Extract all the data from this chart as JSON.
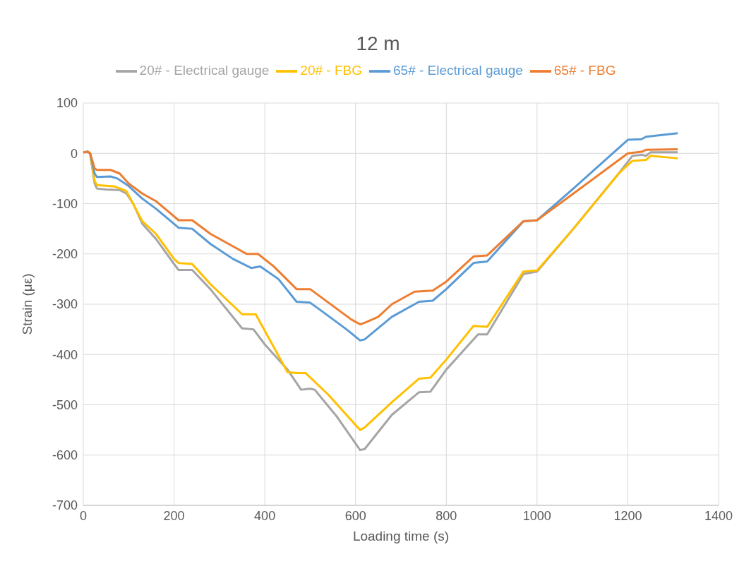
{
  "chart_data": {
    "type": "line",
    "title": "12 m",
    "xlabel": "Loading time (s)",
    "ylabel": "Strain (με)",
    "xlim": [
      0,
      1400
    ],
    "xticks": [
      0,
      200,
      400,
      600,
      800,
      1000,
      1200,
      1400
    ],
    "ylim": [
      -700,
      100
    ],
    "yticks": [
      -700,
      -600,
      -500,
      -400,
      -300,
      -200,
      -100,
      0,
      100
    ],
    "grid": true,
    "legend": "top",
    "marker": "none",
    "line_style": "solid",
    "series": [
      {
        "name": "20# - Electrical gauge",
        "color": "#a5a5a5",
        "x": [
          0,
          10,
          15,
          25,
          30,
          50,
          80,
          95,
          110,
          130,
          160,
          200,
          210,
          240,
          280,
          350,
          375,
          400,
          450,
          480,
          500,
          510,
          560,
          610,
          620,
          680,
          740,
          765,
          800,
          870,
          890,
          970,
          1000,
          1080,
          1180,
          1210,
          1230,
          1240,
          1250,
          1310
        ],
        "values": [
          2,
          3,
          0,
          -60,
          -70,
          -72,
          -73,
          -80,
          -100,
          -140,
          -170,
          -220,
          -232,
          -232,
          -270,
          -348,
          -350,
          -380,
          -430,
          -470,
          -468,
          -470,
          -525,
          -590,
          -588,
          -520,
          -475,
          -474,
          -430,
          -360,
          -360,
          -240,
          -235,
          -150,
          -40,
          -5,
          -3,
          -5,
          2,
          2
        ]
      },
      {
        "name": "20# - FBG",
        "color": "#ffc000",
        "x": [
          0,
          10,
          15,
          25,
          30,
          70,
          95,
          130,
          160,
          200,
          210,
          240,
          250,
          280,
          350,
          380,
          450,
          470,
          490,
          540,
          610,
          620,
          680,
          740,
          765,
          800,
          860,
          890,
          970,
          1000,
          1080,
          1180,
          1210,
          1240,
          1250,
          1310
        ],
        "values": [
          2,
          3,
          0,
          -55,
          -63,
          -66,
          -75,
          -135,
          -160,
          -210,
          -218,
          -220,
          -230,
          -260,
          -320,
          -320,
          -435,
          -437,
          -437,
          -480,
          -550,
          -545,
          -495,
          -448,
          -446,
          -410,
          -343,
          -345,
          -235,
          -233,
          -150,
          -40,
          -15,
          -13,
          -5,
          -10
        ]
      },
      {
        "name": "65# - Electrical gauge",
        "color": "#5b9bd5",
        "x": [
          0,
          10,
          15,
          25,
          30,
          60,
          75,
          100,
          130,
          160,
          210,
          240,
          280,
          330,
          370,
          390,
          430,
          470,
          500,
          520,
          580,
          610,
          620,
          680,
          740,
          770,
          800,
          860,
          890,
          970,
          1000,
          1080,
          1200,
          1230,
          1240,
          1310
        ],
        "values": [
          2,
          3,
          0,
          -40,
          -47,
          -46,
          -50,
          -65,
          -90,
          -110,
          -148,
          -150,
          -180,
          -210,
          -228,
          -225,
          -250,
          -295,
          -297,
          -310,
          -350,
          -372,
          -370,
          -325,
          -295,
          -293,
          -270,
          -218,
          -215,
          -135,
          -133,
          -70,
          27,
          28,
          33,
          40
        ]
      },
      {
        "name": "65# - FBG",
        "color": "#ed7d31",
        "x": [
          0,
          10,
          15,
          25,
          30,
          60,
          80,
          100,
          130,
          160,
          210,
          240,
          280,
          360,
          385,
          420,
          470,
          500,
          530,
          590,
          610,
          620,
          650,
          680,
          730,
          770,
          800,
          860,
          890,
          970,
          1000,
          1080,
          1200,
          1230,
          1240,
          1310
        ],
        "values": [
          2,
          3,
          0,
          -30,
          -33,
          -33,
          -40,
          -60,
          -80,
          -95,
          -133,
          -133,
          -160,
          -200,
          -200,
          -225,
          -270,
          -270,
          -290,
          -330,
          -340,
          -337,
          -325,
          -300,
          -275,
          -273,
          -255,
          -205,
          -203,
          -135,
          -133,
          -80,
          0,
          3,
          7,
          8
        ]
      }
    ]
  }
}
